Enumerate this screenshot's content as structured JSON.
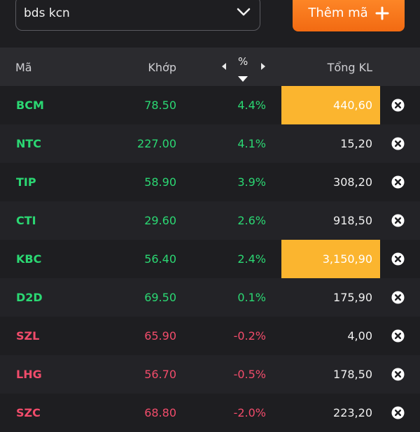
{
  "watchlist_select": {
    "value": "bds kcn"
  },
  "add_button": {
    "label": "Thêm mã"
  },
  "header": {
    "ma": "Mã",
    "khop": "Khớp",
    "pct": "%",
    "tong_kl": "Tổng KL"
  },
  "colors": {
    "up": "#2bd873",
    "down": "#f24c6b",
    "highlight": "#fbb52f",
    "accent": "#f26a12"
  },
  "rows": [
    {
      "ma": "BCM",
      "khop": "78.50",
      "pct": "4.4%",
      "tong_kl": "440,60",
      "trend": "up",
      "highlight": true
    },
    {
      "ma": "NTC",
      "khop": "227.00",
      "pct": "4.1%",
      "tong_kl": "15,20",
      "trend": "up",
      "highlight": false
    },
    {
      "ma": "TIP",
      "khop": "58.90",
      "pct": "3.9%",
      "tong_kl": "308,20",
      "trend": "up",
      "highlight": false
    },
    {
      "ma": "CTI",
      "khop": "29.60",
      "pct": "2.6%",
      "tong_kl": "918,50",
      "trend": "up",
      "highlight": false
    },
    {
      "ma": "KBC",
      "khop": "56.40",
      "pct": "2.4%",
      "tong_kl": "3,150,90",
      "trend": "up",
      "highlight": true
    },
    {
      "ma": "D2D",
      "khop": "69.50",
      "pct": "0.1%",
      "tong_kl": "175,90",
      "trend": "up",
      "highlight": false
    },
    {
      "ma": "SZL",
      "khop": "65.90",
      "pct": "-0.2%",
      "tong_kl": "4,00",
      "trend": "down",
      "highlight": false
    },
    {
      "ma": "LHG",
      "khop": "56.70",
      "pct": "-0.5%",
      "tong_kl": "178,50",
      "trend": "down",
      "highlight": false
    },
    {
      "ma": "SZC",
      "khop": "68.80",
      "pct": "-2.0%",
      "tong_kl": "223,20",
      "trend": "down",
      "highlight": false
    }
  ]
}
